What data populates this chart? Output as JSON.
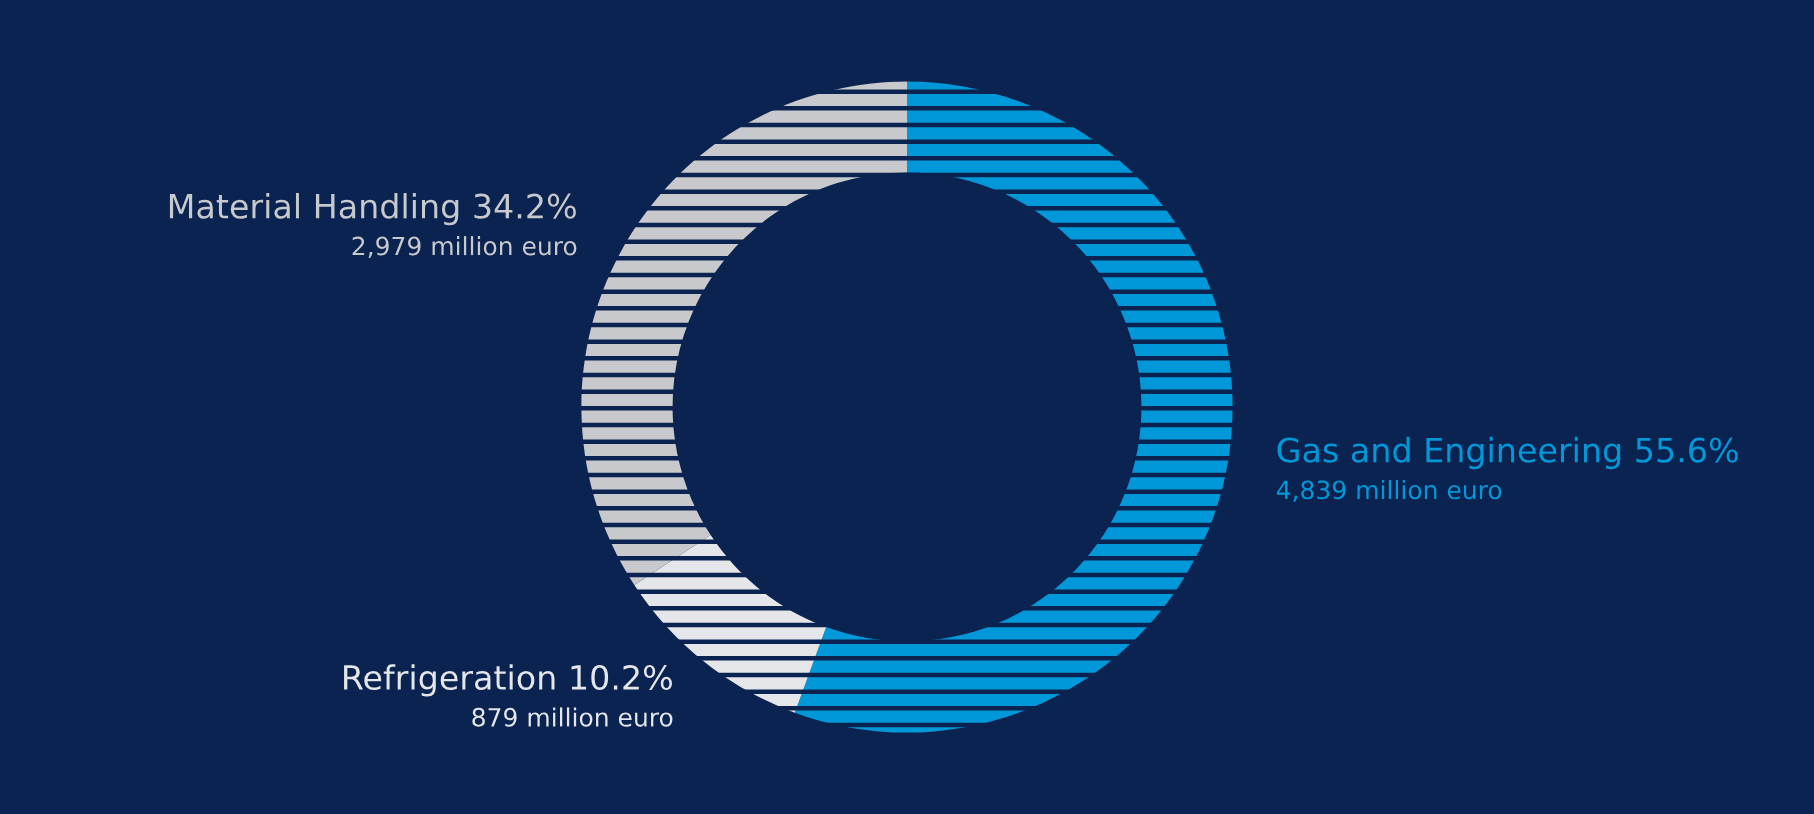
{
  "chart_data": {
    "type": "donut",
    "categories": [
      "Gas and Engineering",
      "Refrigeration",
      "Material Handling"
    ],
    "values": [
      55.6,
      10.2,
      34.2
    ],
    "value_labels": [
      "55.6%",
      "10.2%",
      "34.2%"
    ],
    "colors": [
      "#0098d8",
      "#e4e6ea",
      "#c8c9cc"
    ],
    "annotations": [
      "4,839 million euro",
      "879 million euro",
      "2,979 million euro"
    ]
  }
}
